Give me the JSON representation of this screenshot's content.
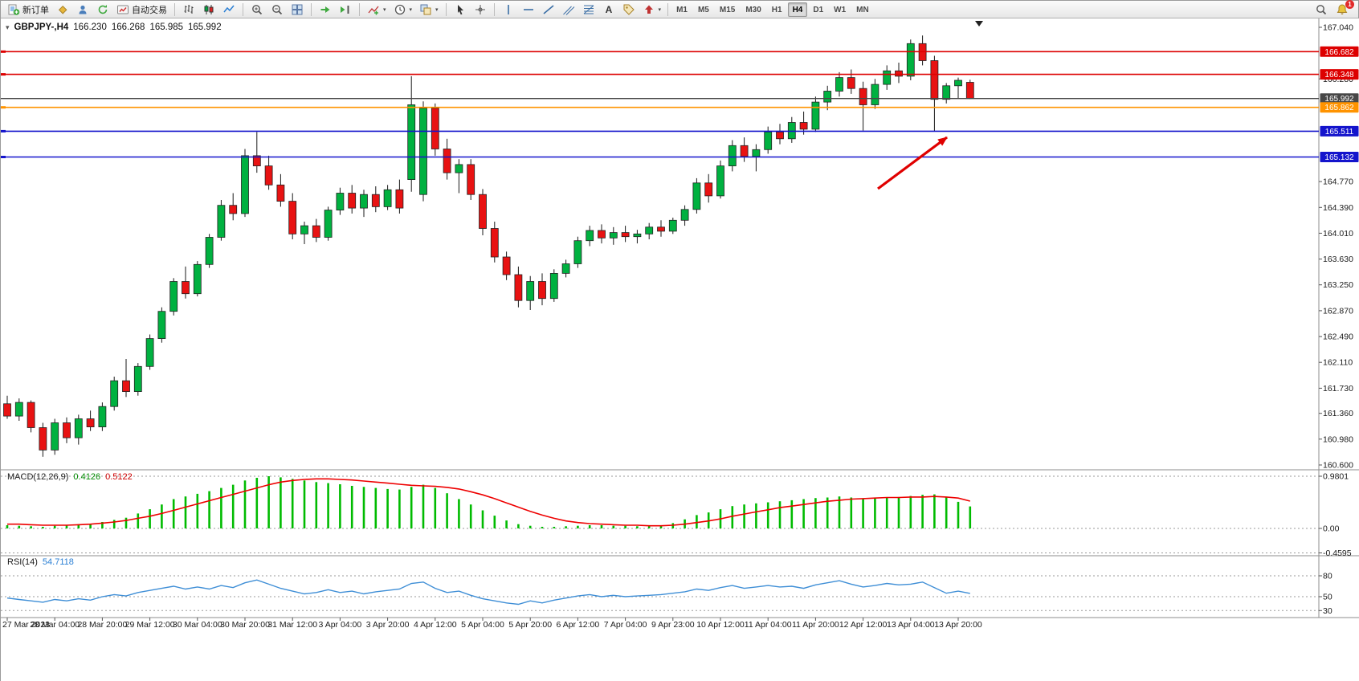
{
  "toolbar": {
    "groups": [
      {
        "items": [
          {
            "name": "new-order-button",
            "icon": "new-order",
            "label": "新订单"
          },
          {
            "name": "market-watch-button",
            "icon": "diamond"
          },
          {
            "name": "accounts-button",
            "icon": "user"
          },
          {
            "name": "refresh-button",
            "icon": "refresh"
          },
          {
            "name": "autotrading-button",
            "icon": "autotrade",
            "label": "自动交易"
          }
        ]
      },
      {
        "items": [
          {
            "name": "bar-chart-button",
            "icon": "bars-chart"
          },
          {
            "name": "candlestick-chart-button",
            "icon": "candles-chart"
          },
          {
            "name": "line-chart-button",
            "icon": "line-chart"
          }
        ]
      },
      {
        "items": [
          {
            "name": "zoom-in-button",
            "icon": "zoom-in"
          },
          {
            "name": "zoom-out-button",
            "icon": "zoom-out"
          },
          {
            "name": "tile-windows-button",
            "icon": "tile-windows"
          }
        ]
      },
      {
        "items": [
          {
            "name": "auto-scroll-button",
            "icon": "auto-scroll"
          },
          {
            "name": "chart-shift-button",
            "icon": "chart-shift"
          }
        ]
      },
      {
        "items": [
          {
            "name": "indicators-button",
            "icon": "indicators",
            "caret": true
          },
          {
            "name": "periods-button",
            "icon": "clock",
            "caret": true
          },
          {
            "name": "templates-button",
            "icon": "templates",
            "caret": true
          }
        ]
      },
      {
        "items": [
          {
            "name": "cursor-button",
            "icon": "cursor"
          },
          {
            "name": "crosshair-button",
            "icon": "crosshair"
          }
        ]
      },
      {
        "items": [
          {
            "name": "vertical-line-button",
            "icon": "vline"
          },
          {
            "name": "horizontal-line-button",
            "icon": "hline"
          },
          {
            "name": "trendline-button",
            "icon": "trendline"
          },
          {
            "name": "channel-button",
            "icon": "channel"
          },
          {
            "name": "fibonacci-button",
            "icon": "fibonacci"
          },
          {
            "name": "text-button",
            "icon": "text"
          },
          {
            "name": "text-label-button",
            "icon": "label"
          },
          {
            "name": "arrows-button",
            "icon": "arrows",
            "caret": true
          }
        ]
      }
    ],
    "timeframes": [
      "M1",
      "M5",
      "M15",
      "M30",
      "H1",
      "H4",
      "D1",
      "W1",
      "MN"
    ],
    "active_timeframe": "H4",
    "right": [
      {
        "name": "search-button",
        "icon": "search"
      },
      {
        "name": "notifications-button",
        "icon": "bell",
        "badge": "1"
      }
    ]
  },
  "chart": {
    "header": {
      "collapse_glyph": "▾",
      "symbol": "GBPJPY-,H4",
      "open": "166.230",
      "high": "166.268",
      "low": "165.985",
      "close": "165.992"
    },
    "macd_label": {
      "name": "MACD(12,26,9)",
      "main_value": "0.4126",
      "signal_value": "0.5122"
    },
    "rsi_label": {
      "name": "RSI(14)",
      "value": "54.7118"
    }
  },
  "chart_data": {
    "type": "candlestick",
    "symbol": "GBPJPY-",
    "timeframe": "H4",
    "colors": {
      "up": "#00b140",
      "down": "#e81212",
      "wick": "#1a1a1a",
      "bid_line": "#474747"
    },
    "price_axis": {
      "min": 160.6,
      "max": 167.04,
      "ticks": [
        167.04,
        166.28,
        164.77,
        164.39,
        164.01,
        163.63,
        163.25,
        162.87,
        162.49,
        162.11,
        161.73,
        161.36,
        160.98,
        160.6
      ]
    },
    "hlines": [
      {
        "price": 166.682,
        "label": "166.682",
        "color": "#dd0000"
      },
      {
        "price": 166.348,
        "label": "166.348",
        "color": "#dd0000"
      },
      {
        "price": 165.992,
        "label": "165.992",
        "color": "#474747",
        "role": "bid"
      },
      {
        "price": 165.862,
        "label": "165.862",
        "color": "#ff9300"
      },
      {
        "price": 165.511,
        "label": "165.511",
        "color": "#1414cc"
      },
      {
        "price": 165.132,
        "label": "165.132",
        "color": "#1414cc"
      }
    ],
    "time_labels": [
      "27 Mar 2023",
      "28 Mar 04:00",
      "28 Mar 20:00",
      "29 Mar 12:00",
      "30 Mar 04:00",
      "30 Mar 20:00",
      "31 Mar 12:00",
      "3 Apr 04:00",
      "3 Apr 20:00",
      "4 Apr 12:00",
      "5 Apr 04:00",
      "5 Apr 20:00",
      "6 Apr 12:00",
      "7 Apr 04:00",
      "9 Apr 23:00",
      "10 Apr 12:00",
      "11 Apr 04:00",
      "11 Apr 20:00",
      "12 Apr 12:00",
      "13 Apr 04:00",
      "13 Apr 20:00"
    ],
    "candles": [
      [
        161.5,
        161.62,
        161.28,
        161.32
      ],
      [
        161.32,
        161.58,
        161.25,
        161.52
      ],
      [
        161.52,
        161.55,
        161.08,
        161.15
      ],
      [
        161.15,
        161.22,
        160.72,
        160.82
      ],
      [
        160.82,
        161.28,
        160.75,
        161.22
      ],
      [
        161.22,
        161.3,
        160.92,
        161.0
      ],
      [
        161.0,
        161.34,
        160.9,
        161.28
      ],
      [
        161.28,
        161.4,
        161.1,
        161.16
      ],
      [
        161.16,
        161.52,
        161.1,
        161.46
      ],
      [
        161.46,
        161.9,
        161.4,
        161.84
      ],
      [
        161.84,
        162.16,
        161.6,
        161.68
      ],
      [
        161.68,
        162.1,
        161.62,
        162.05
      ],
      [
        162.05,
        162.52,
        162.0,
        162.46
      ],
      [
        162.46,
        162.92,
        162.4,
        162.86
      ],
      [
        162.86,
        163.35,
        162.8,
        163.3
      ],
      [
        163.3,
        163.52,
        163.05,
        163.12
      ],
      [
        163.12,
        163.6,
        163.08,
        163.55
      ],
      [
        163.55,
        164.0,
        163.5,
        163.95
      ],
      [
        163.95,
        164.5,
        163.9,
        164.42
      ],
      [
        164.42,
        164.6,
        164.2,
        164.3
      ],
      [
        164.3,
        165.25,
        164.25,
        165.15
      ],
      [
        165.15,
        165.5,
        164.9,
        165.0
      ],
      [
        165.0,
        165.15,
        164.65,
        164.72
      ],
      [
        164.72,
        164.88,
        164.4,
        164.48
      ],
      [
        164.48,
        164.6,
        163.92,
        164.0
      ],
      [
        164.0,
        164.18,
        163.85,
        164.12
      ],
      [
        164.12,
        164.22,
        163.88,
        163.95
      ],
      [
        163.95,
        164.4,
        163.9,
        164.35
      ],
      [
        164.35,
        164.68,
        164.28,
        164.6
      ],
      [
        164.6,
        164.72,
        164.3,
        164.38
      ],
      [
        164.38,
        164.65,
        164.25,
        164.58
      ],
      [
        164.58,
        164.7,
        164.32,
        164.4
      ],
      [
        164.4,
        164.72,
        164.35,
        164.65
      ],
      [
        164.65,
        164.8,
        164.3,
        164.38
      ],
      [
        164.8,
        166.32,
        164.62,
        165.9
      ],
      [
        164.58,
        165.95,
        164.48,
        165.85
      ],
      [
        165.85,
        165.92,
        165.15,
        165.25
      ],
      [
        165.25,
        165.4,
        164.8,
        164.9
      ],
      [
        164.9,
        165.1,
        164.6,
        165.02
      ],
      [
        165.02,
        165.1,
        164.5,
        164.58
      ],
      [
        164.58,
        164.66,
        163.98,
        164.08
      ],
      [
        164.08,
        164.18,
        163.58,
        163.66
      ],
      [
        163.66,
        163.74,
        163.32,
        163.4
      ],
      [
        163.4,
        163.52,
        162.92,
        163.02
      ],
      [
        163.02,
        163.38,
        162.88,
        163.3
      ],
      [
        163.3,
        163.42,
        162.95,
        163.05
      ],
      [
        163.05,
        163.48,
        163.0,
        163.42
      ],
      [
        163.42,
        163.62,
        163.36,
        163.56
      ],
      [
        163.56,
        163.96,
        163.5,
        163.9
      ],
      [
        163.9,
        164.12,
        163.82,
        164.05
      ],
      [
        164.05,
        164.14,
        163.86,
        163.94
      ],
      [
        163.94,
        164.1,
        163.84,
        164.02
      ],
      [
        164.02,
        164.12,
        163.88,
        163.96
      ],
      [
        163.96,
        164.06,
        163.86,
        164.0
      ],
      [
        164.0,
        164.16,
        163.92,
        164.1
      ],
      [
        164.1,
        164.2,
        163.96,
        164.04
      ],
      [
        164.04,
        164.24,
        164.0,
        164.2
      ],
      [
        164.2,
        164.42,
        164.12,
        164.36
      ],
      [
        164.36,
        164.82,
        164.3,
        164.75
      ],
      [
        164.75,
        164.88,
        164.46,
        164.56
      ],
      [
        164.56,
        165.08,
        164.52,
        165.0
      ],
      [
        165.0,
        165.38,
        164.92,
        165.3
      ],
      [
        165.3,
        165.42,
        165.06,
        165.14
      ],
      [
        165.14,
        165.32,
        164.92,
        165.24
      ],
      [
        165.24,
        165.58,
        165.18,
        165.5
      ],
      [
        165.5,
        165.62,
        165.32,
        165.4
      ],
      [
        165.4,
        165.72,
        165.34,
        165.64
      ],
      [
        165.64,
        165.8,
        165.46,
        165.54
      ],
      [
        165.54,
        166.02,
        165.5,
        165.94
      ],
      [
        165.94,
        166.18,
        165.82,
        166.1
      ],
      [
        166.1,
        166.38,
        166.02,
        166.3
      ],
      [
        166.3,
        166.42,
        166.06,
        166.14
      ],
      [
        166.14,
        166.24,
        165.52,
        165.9
      ],
      [
        165.9,
        166.28,
        165.84,
        166.2
      ],
      [
        166.2,
        166.48,
        166.12,
        166.4
      ],
      [
        166.4,
        166.52,
        166.22,
        166.32
      ],
      [
        166.32,
        166.86,
        166.26,
        166.8
      ],
      [
        166.8,
        166.92,
        166.48,
        166.55
      ],
      [
        166.55,
        166.62,
        165.51,
        165.98
      ],
      [
        165.98,
        166.22,
        165.92,
        166.18
      ],
      [
        166.18,
        166.3,
        166.0,
        166.26
      ],
      [
        166.23,
        166.268,
        165.985,
        165.992
      ]
    ],
    "macd": {
      "params": "12,26,9",
      "hist_color": "#00bb00",
      "signal_color": "#ee0000",
      "axis": [
        {
          "v": 0.9801,
          "label": "0.9801"
        },
        {
          "v": 0,
          "label": "0.00"
        },
        {
          "v": -0.4595,
          "label": "-0.4595"
        }
      ],
      "histogram": [
        0.06,
        0.05,
        0.04,
        0.03,
        0.05,
        0.06,
        0.08,
        0.09,
        0.12,
        0.16,
        0.2,
        0.28,
        0.36,
        0.45,
        0.55,
        0.6,
        0.65,
        0.7,
        0.76,
        0.82,
        0.9,
        0.95,
        0.98,
        0.96,
        0.93,
        0.9,
        0.87,
        0.85,
        0.83,
        0.8,
        0.78,
        0.76,
        0.74,
        0.73,
        0.78,
        0.82,
        0.76,
        0.66,
        0.55,
        0.45,
        0.34,
        0.24,
        0.15,
        0.08,
        0.05,
        0.03,
        0.03,
        0.04,
        0.05,
        0.06,
        0.06,
        0.05,
        0.05,
        0.04,
        0.05,
        0.06,
        0.1,
        0.17,
        0.25,
        0.3,
        0.36,
        0.42,
        0.45,
        0.47,
        0.49,
        0.51,
        0.53,
        0.55,
        0.57,
        0.58,
        0.6,
        0.58,
        0.56,
        0.57,
        0.58,
        0.59,
        0.61,
        0.63,
        0.64,
        0.58,
        0.5,
        0.4126
      ],
      "signal": [
        0.08,
        0.08,
        0.07,
        0.06,
        0.06,
        0.06,
        0.07,
        0.08,
        0.1,
        0.12,
        0.15,
        0.19,
        0.23,
        0.28,
        0.34,
        0.4,
        0.46,
        0.52,
        0.58,
        0.64,
        0.7,
        0.76,
        0.82,
        0.87,
        0.9,
        0.92,
        0.93,
        0.93,
        0.92,
        0.91,
        0.89,
        0.87,
        0.85,
        0.83,
        0.81,
        0.8,
        0.79,
        0.77,
        0.74,
        0.69,
        0.63,
        0.56,
        0.48,
        0.4,
        0.32,
        0.25,
        0.19,
        0.14,
        0.11,
        0.09,
        0.08,
        0.07,
        0.06,
        0.06,
        0.05,
        0.05,
        0.06,
        0.08,
        0.11,
        0.14,
        0.18,
        0.23,
        0.27,
        0.31,
        0.35,
        0.39,
        0.42,
        0.45,
        0.48,
        0.51,
        0.53,
        0.55,
        0.56,
        0.57,
        0.58,
        0.58,
        0.59,
        0.59,
        0.6,
        0.59,
        0.57,
        0.5122
      ]
    },
    "rsi": {
      "period": 14,
      "color": "#3e8ed6",
      "levels": [
        {
          "v": 80,
          "label": "80"
        },
        {
          "v": 50,
          "label": "50"
        },
        {
          "v": 30,
          "label": "30"
        }
      ],
      "values": [
        48,
        46,
        44,
        42,
        46,
        44,
        47,
        45,
        50,
        53,
        51,
        56,
        59,
        62,
        65,
        61,
        64,
        61,
        66,
        63,
        70,
        74,
        68,
        62,
        58,
        54,
        56,
        60,
        56,
        58,
        54,
        57,
        59,
        61,
        69,
        71,
        62,
        56,
        58,
        52,
        47,
        44,
        41,
        39,
        44,
        41,
        45,
        48,
        51,
        53,
        50,
        52,
        50,
        51,
        52,
        53,
        55,
        57,
        61,
        59,
        63,
        66,
        62,
        64,
        66,
        64,
        65,
        62,
        67,
        70,
        73,
        68,
        64,
        66,
        69,
        67,
        68,
        71,
        63,
        55,
        58,
        54.7118
      ]
    },
    "annotations": [
      {
        "type": "arrow",
        "color": "#e00000"
      }
    ]
  }
}
